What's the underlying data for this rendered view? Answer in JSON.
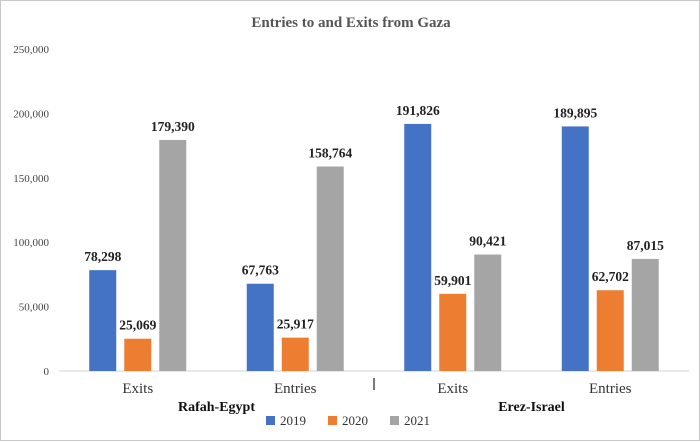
{
  "chart_data": {
    "type": "bar",
    "title": "Entries to and Exits from Gaza",
    "groups": [
      "Rafah-Egypt",
      "Erez-Israel"
    ],
    "categories": [
      "Exits",
      "Entries",
      "Exits",
      "Entries"
    ],
    "category_group": [
      0,
      0,
      1,
      1
    ],
    "series": [
      {
        "name": "2019",
        "color": "#4472C4",
        "values": [
          78298,
          67763,
          191826,
          189895
        ],
        "labels": [
          "78,298",
          "67,763",
          "191,826",
          "189,895"
        ]
      },
      {
        "name": "2020",
        "color": "#ED7D31",
        "values": [
          25069,
          25917,
          59901,
          62702
        ],
        "labels": [
          "25,069",
          "25,917",
          "59,901",
          "62,702"
        ]
      },
      {
        "name": "2021",
        "color": "#A5A5A5",
        "values": [
          179390,
          158764,
          90421,
          87015
        ],
        "labels": [
          "179,390",
          "158,764",
          "90,421",
          "87,015"
        ]
      }
    ],
    "ylim": [
      0,
      250000
    ],
    "yticks": [
      0,
      50000,
      100000,
      150000,
      200000,
      250000
    ],
    "ytick_labels": [
      "0",
      "50,000",
      "100,000",
      "150,000",
      "200,000",
      "250,000"
    ],
    "legend_position": "bottom",
    "grid": false
  }
}
